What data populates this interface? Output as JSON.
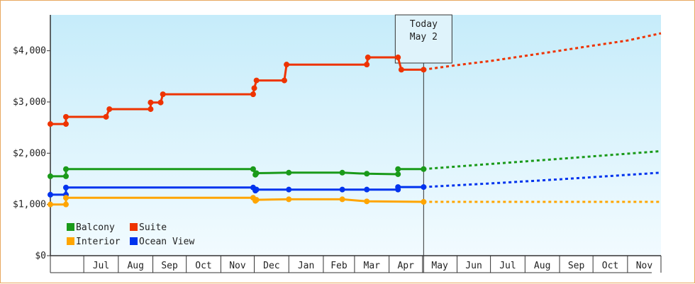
{
  "chart_data": {
    "type": "line",
    "title": "",
    "xlabel": "",
    "ylabel": "",
    "x_ticks": [
      "Jul",
      "Aug",
      "Sep",
      "Oct",
      "Nov",
      "Dec",
      "Jan",
      "Feb",
      "Mar",
      "Apr",
      "May",
      "Jun",
      "Jul",
      "Aug",
      "Sep",
      "Oct",
      "Nov"
    ],
    "y_ticks": [
      "$0",
      "$1,000",
      "$2,000",
      "$3,000",
      "$4,000"
    ],
    "ylim": [
      0,
      4700
    ],
    "x_range": [
      "2024-06-01",
      "2025-12-01"
    ],
    "today": {
      "label_line1": "Today",
      "label_line2": "May 2",
      "date": "2025-05-02"
    },
    "legend": {
      "placement": "bottom-left"
    },
    "grid": false,
    "colors": {
      "balcony": "#1a9a1a",
      "suite": "#ee3300",
      "interior": "#ffa500",
      "ocean_view": "#0033ee"
    },
    "series": [
      {
        "name": "Suite",
        "color": "#ee3300",
        "points": [
          [
            "2024-06-01",
            2570
          ],
          [
            "2024-06-15",
            2570
          ],
          [
            "2024-06-15",
            2710
          ],
          [
            "2024-07-21",
            2710
          ],
          [
            "2024-07-24",
            2860
          ],
          [
            "2024-08-30",
            2860
          ],
          [
            "2024-08-30",
            2990
          ],
          [
            "2024-09-08",
            2990
          ],
          [
            "2024-09-10",
            3150
          ],
          [
            "2024-11-30",
            3150
          ],
          [
            "2024-12-01",
            3270
          ],
          [
            "2024-12-03",
            3420
          ],
          [
            "2024-12-28",
            3420
          ],
          [
            "2024-12-30",
            3730
          ],
          [
            "2025-03-12",
            3730
          ],
          [
            "2025-03-13",
            3870
          ],
          [
            "2025-04-09",
            3870
          ],
          [
            "2025-04-12",
            3630
          ],
          [
            "2025-05-02",
            3630
          ]
        ],
        "projection": [
          [
            "2025-05-02",
            3630
          ],
          [
            "2025-06-01",
            3720
          ],
          [
            "2025-07-01",
            3800
          ],
          [
            "2025-08-01",
            3900
          ],
          [
            "2025-09-01",
            4000
          ],
          [
            "2025-10-01",
            4100
          ],
          [
            "2025-11-01",
            4200
          ],
          [
            "2025-12-01",
            4340
          ]
        ]
      },
      {
        "name": "Balcony",
        "color": "#1a9a1a",
        "points": [
          [
            "2024-06-01",
            1550
          ],
          [
            "2024-06-15",
            1550
          ],
          [
            "2024-06-15",
            1690
          ],
          [
            "2024-11-30",
            1690
          ],
          [
            "2024-12-02",
            1580
          ],
          [
            "2024-12-03",
            1610
          ],
          [
            "2025-01-01",
            1620
          ],
          [
            "2025-02-18",
            1620
          ],
          [
            "2025-03-12",
            1600
          ],
          [
            "2025-04-09",
            1590
          ],
          [
            "2025-04-09",
            1690
          ],
          [
            "2025-05-02",
            1690
          ]
        ],
        "projection": [
          [
            "2025-05-02",
            1690
          ],
          [
            "2025-07-01",
            1790
          ],
          [
            "2025-09-01",
            1890
          ],
          [
            "2025-12-01",
            2040
          ]
        ]
      },
      {
        "name": "Ocean View",
        "color": "#0033ee",
        "points": [
          [
            "2024-06-01",
            1190
          ],
          [
            "2024-06-15",
            1190
          ],
          [
            "2024-06-15",
            1330
          ],
          [
            "2024-11-30",
            1330
          ],
          [
            "2024-12-02",
            1270
          ],
          [
            "2024-12-03",
            1290
          ],
          [
            "2025-01-01",
            1290
          ],
          [
            "2025-02-18",
            1290
          ],
          [
            "2025-03-12",
            1290
          ],
          [
            "2025-04-09",
            1290
          ],
          [
            "2025-04-09",
            1340
          ],
          [
            "2025-05-02",
            1340
          ]
        ],
        "projection": [
          [
            "2025-05-02",
            1340
          ],
          [
            "2025-07-01",
            1410
          ],
          [
            "2025-09-01",
            1490
          ],
          [
            "2025-12-01",
            1620
          ]
        ]
      },
      {
        "name": "Interior",
        "color": "#ffa500",
        "points": [
          [
            "2024-06-01",
            1000
          ],
          [
            "2024-06-15",
            1000
          ],
          [
            "2024-06-15",
            1130
          ],
          [
            "2024-11-30",
            1130
          ],
          [
            "2024-12-02",
            1070
          ],
          [
            "2024-12-03",
            1090
          ],
          [
            "2025-01-01",
            1100
          ],
          [
            "2025-02-18",
            1100
          ],
          [
            "2025-03-12",
            1060
          ],
          [
            "2025-05-02",
            1050
          ]
        ],
        "projection": [
          [
            "2025-05-02",
            1050
          ],
          [
            "2025-12-01",
            1050
          ]
        ]
      }
    ]
  }
}
